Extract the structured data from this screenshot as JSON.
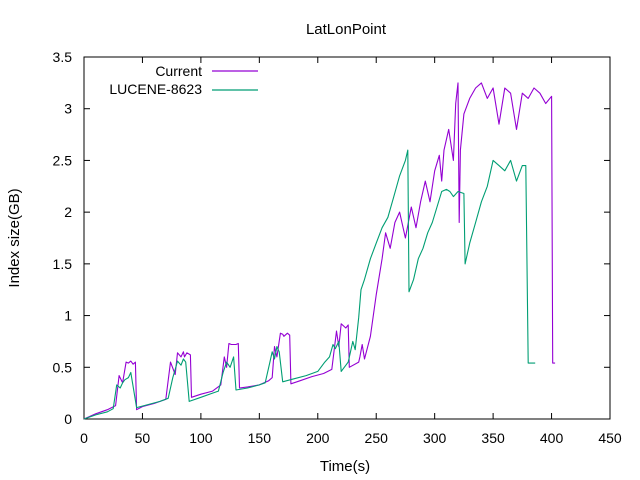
{
  "chart_data": {
    "type": "line",
    "title": "LatLonPoint",
    "xlabel": "Time(s)",
    "ylabel": "Index size(GB)",
    "xlim": [
      0,
      450
    ],
    "ylim": [
      0,
      3.5
    ],
    "xticks": [
      0,
      50,
      100,
      150,
      200,
      250,
      300,
      350,
      400,
      450
    ],
    "yticks": [
      0,
      0.5,
      1,
      1.5,
      2,
      2.5,
      3,
      3.5
    ],
    "xtick_labels": [
      "0",
      "50",
      "100",
      "150",
      "200",
      "250",
      "300",
      "350",
      "400",
      "450"
    ],
    "ytick_labels": [
      "0",
      "0.5",
      "1",
      "1.5",
      "2",
      "2.5",
      "3",
      "3.5"
    ],
    "grid": false,
    "legend_position": "top-left",
    "series": [
      {
        "name": "Current",
        "color": "#9400d3",
        "x": [
          0,
          10,
          20,
          27,
          30,
          33,
          36,
          38,
          40,
          42,
          44,
          45,
          50,
          60,
          70,
          74,
          78,
          80,
          83,
          85,
          86,
          88,
          91,
          92,
          100,
          110,
          117,
          120,
          122,
          124,
          126,
          130,
          132,
          133,
          140,
          150,
          158,
          161,
          163,
          165,
          168,
          170,
          171,
          174,
          176,
          177,
          185,
          195,
          205,
          212,
          216,
          218,
          220,
          222,
          224,
          226,
          227,
          235,
          236,
          238,
          240,
          245,
          250,
          255,
          258,
          262,
          266,
          270,
          275,
          280,
          284,
          288,
          292,
          296,
          300,
          304,
          306,
          308,
          312,
          316,
          318,
          320,
          321,
          322,
          325,
          330,
          335,
          340,
          345,
          350,
          355,
          360,
          365,
          370,
          375,
          380,
          385,
          390,
          395,
          400,
          401,
          403
        ],
        "values": [
          0,
          0.05,
          0.09,
          0.13,
          0.42,
          0.35,
          0.55,
          0.54,
          0.56,
          0.53,
          0.55,
          0.09,
          0.12,
          0.15,
          0.19,
          0.55,
          0.43,
          0.64,
          0.6,
          0.65,
          0.6,
          0.64,
          0.62,
          0.21,
          0.24,
          0.27,
          0.33,
          0.6,
          0.5,
          0.73,
          0.72,
          0.72,
          0.73,
          0.3,
          0.31,
          0.33,
          0.37,
          0.4,
          0.7,
          0.6,
          0.83,
          0.82,
          0.8,
          0.83,
          0.81,
          0.34,
          0.37,
          0.41,
          0.44,
          0.48,
          0.85,
          0.7,
          0.92,
          0.9,
          0.88,
          0.91,
          0.5,
          0.55,
          0.6,
          0.72,
          0.58,
          0.8,
          1.2,
          1.55,
          1.8,
          1.65,
          1.9,
          2.0,
          1.75,
          2.05,
          1.85,
          2.1,
          2.3,
          2.1,
          2.4,
          2.55,
          2.3,
          2.6,
          2.8,
          2.5,
          3.05,
          3.25,
          1.9,
          2.6,
          2.95,
          3.1,
          3.2,
          3.25,
          3.1,
          3.2,
          2.85,
          3.2,
          3.15,
          2.8,
          3.15,
          3.1,
          3.2,
          3.15,
          3.05,
          3.12,
          0.54,
          0.54
        ]
      },
      {
        "name": "LUCENE-8623",
        "color": "#009e73",
        "x": [
          0,
          10,
          20,
          25,
          28,
          31,
          33,
          35,
          38,
          40,
          45,
          55,
          65,
          72,
          76,
          78,
          80,
          83,
          85,
          87,
          90,
          100,
          110,
          115,
          119,
          122,
          125,
          128,
          130,
          140,
          150,
          155,
          159,
          161,
          163,
          165,
          167,
          170,
          180,
          190,
          200,
          206,
          210,
          213,
          215,
          218,
          220,
          226,
          230,
          232,
          235,
          237,
          240,
          245,
          250,
          255,
          260,
          265,
          270,
          275,
          277,
          278,
          282,
          286,
          290,
          294,
          298,
          302,
          306,
          310,
          313,
          316,
          320,
          325,
          326,
          330,
          335,
          340,
          345,
          350,
          355,
          360,
          365,
          370,
          375,
          378,
          380,
          382,
          383,
          385,
          386
        ],
        "values": [
          0,
          0.04,
          0.07,
          0.1,
          0.33,
          0.3,
          0.35,
          0.38,
          0.4,
          0.45,
          0.11,
          0.14,
          0.17,
          0.2,
          0.4,
          0.48,
          0.56,
          0.52,
          0.58,
          0.55,
          0.17,
          0.21,
          0.25,
          0.27,
          0.45,
          0.55,
          0.5,
          0.6,
          0.28,
          0.3,
          0.33,
          0.35,
          0.55,
          0.65,
          0.58,
          0.7,
          0.65,
          0.36,
          0.39,
          0.42,
          0.46,
          0.55,
          0.6,
          0.72,
          0.68,
          0.75,
          0.46,
          0.55,
          0.75,
          0.67,
          0.98,
          1.25,
          1.35,
          1.55,
          1.7,
          1.85,
          1.95,
          2.15,
          2.35,
          2.5,
          2.6,
          1.23,
          1.35,
          1.55,
          1.65,
          1.8,
          1.9,
          2.05,
          2.2,
          2.22,
          2.2,
          2.15,
          2.2,
          2.18,
          1.5,
          1.7,
          1.9,
          2.1,
          2.25,
          2.5,
          2.45,
          2.4,
          2.5,
          2.3,
          2.45,
          2.45,
          0.54,
          0.54,
          0.54,
          0.54,
          0.54
        ]
      }
    ]
  }
}
